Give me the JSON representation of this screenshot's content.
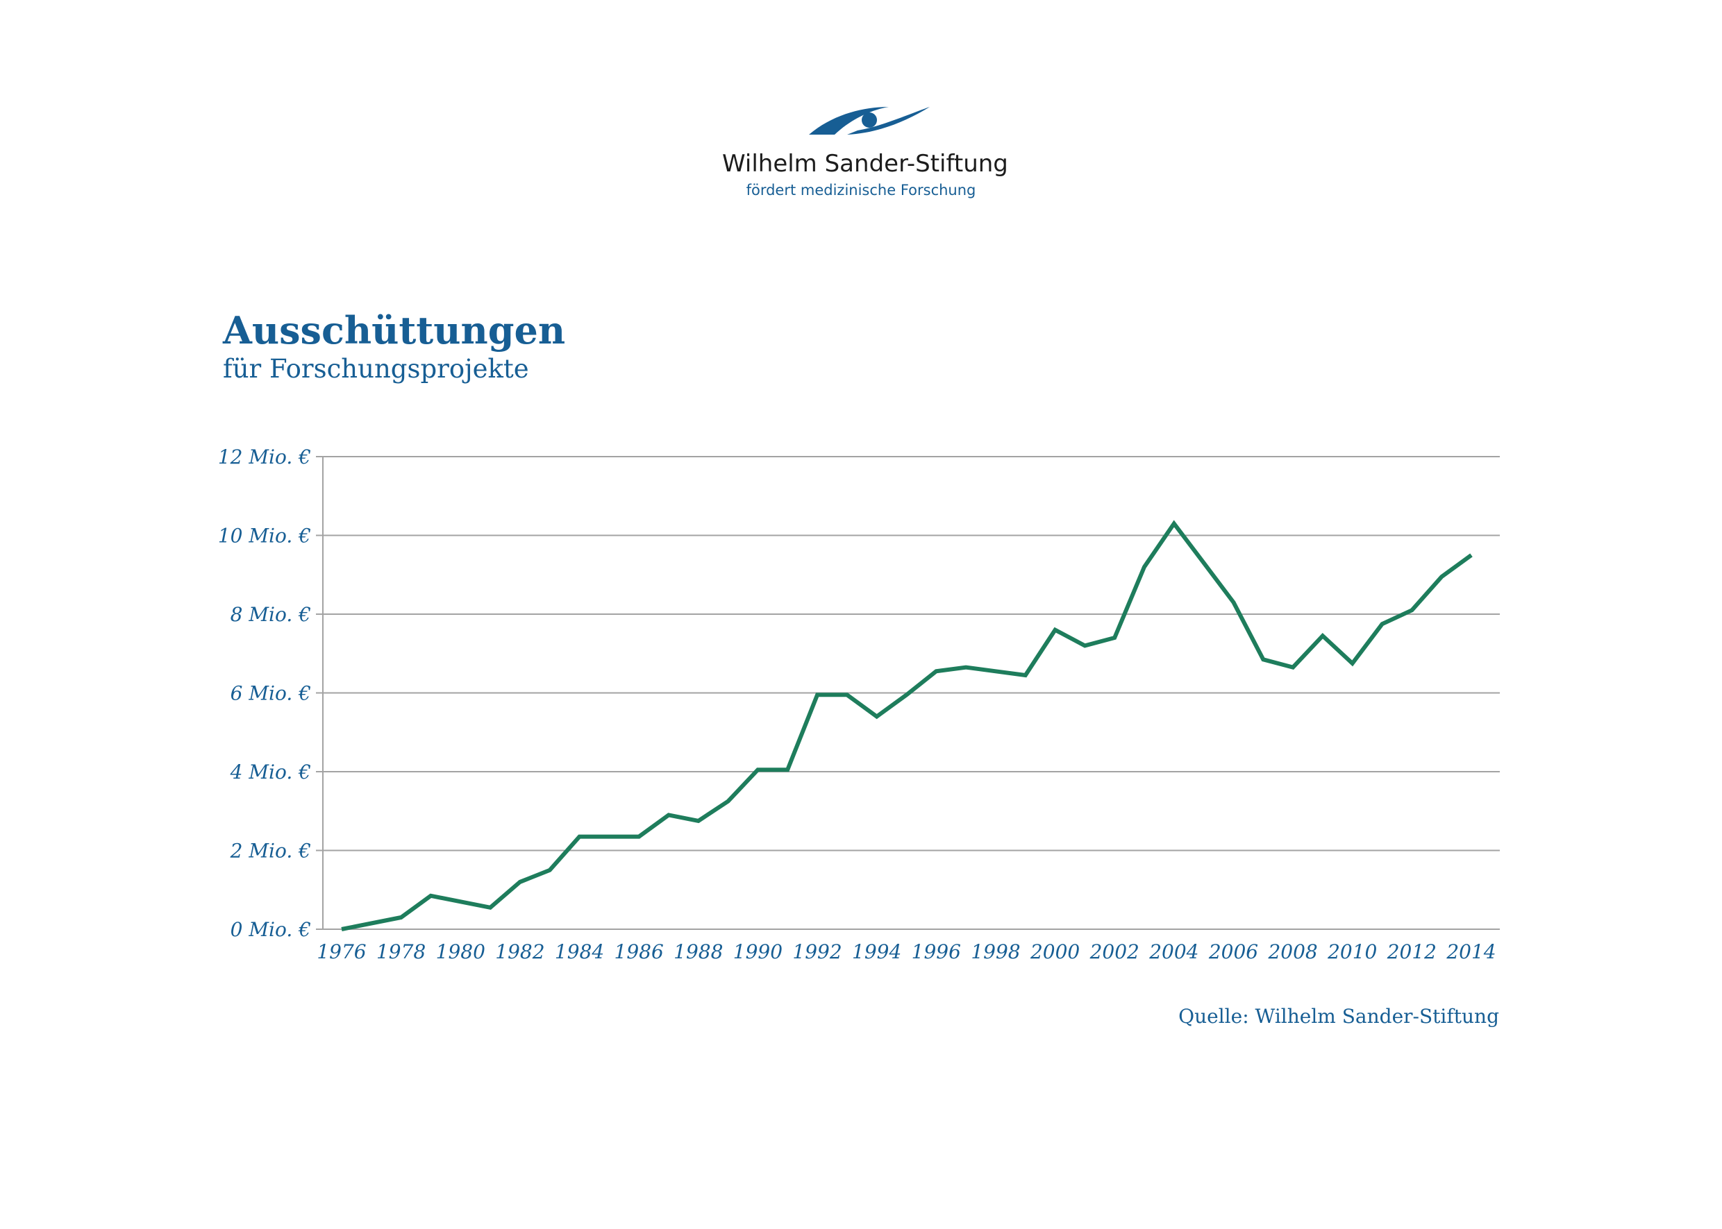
{
  "logo": {
    "name": "Wilhelm Sander-Stiftung",
    "tagline": "fördert medizinische Forschung",
    "icon": "eye-logo-icon"
  },
  "colors": {
    "brand": "#175e94",
    "line": "#1e7d5c",
    "grid": "#a3a3a3"
  },
  "source": "Quelle: Wilhelm Sander-Stiftung",
  "chart_data": {
    "type": "line",
    "title": "Ausschüttungen",
    "subtitle": "für Forschungsprojekte",
    "xlabel": "",
    "ylabel": "",
    "ylim": [
      0,
      12
    ],
    "xlim": [
      1976,
      2014
    ],
    "grid": true,
    "y_ticks": [
      {
        "value": 0,
        "label": "0 Mio. €"
      },
      {
        "value": 2,
        "label": "2 Mio. €"
      },
      {
        "value": 4,
        "label": "4 Mio. €"
      },
      {
        "value": 6,
        "label": "6 Mio. €"
      },
      {
        "value": 8,
        "label": "8 Mio. €"
      },
      {
        "value": 10,
        "label": "10 Mio. €"
      },
      {
        "value": 12,
        "label": "12 Mio. €"
      }
    ],
    "x_ticks": [
      1976,
      1978,
      1980,
      1982,
      1984,
      1986,
      1988,
      1990,
      1992,
      1994,
      1996,
      1998,
      2000,
      2002,
      2004,
      2006,
      2008,
      2010,
      2012,
      2014
    ],
    "series": [
      {
        "x": [
          1976,
          1977,
          1978,
          1979,
          1980,
          1981,
          1982,
          1983,
          1984,
          1985,
          1986,
          1987,
          1988,
          1989,
          1990,
          1991,
          1992,
          1993,
          1994,
          1995,
          1996,
          1997,
          1998,
          1999,
          2000,
          2001,
          2002,
          2003,
          2004,
          2005,
          2006,
          2007,
          2008,
          2009,
          2010,
          2011,
          2012,
          2013,
          2014
        ],
        "values": [
          0.0,
          0.15,
          0.3,
          0.85,
          0.7,
          0.55,
          1.2,
          1.5,
          2.35,
          2.35,
          2.35,
          2.9,
          2.75,
          3.25,
          4.05,
          4.05,
          5.95,
          5.95,
          5.4,
          5.95,
          6.55,
          6.65,
          6.55,
          6.45,
          7.6,
          7.2,
          7.4,
          9.2,
          10.3,
          9.3,
          8.3,
          6.85,
          6.65,
          7.45,
          6.75,
          7.75,
          8.1,
          8.95,
          9.5
        ]
      }
    ]
  }
}
